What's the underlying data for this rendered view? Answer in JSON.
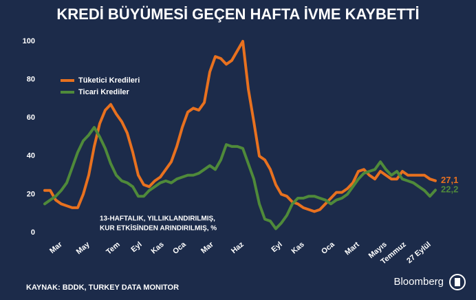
{
  "chart_data": {
    "type": "line",
    "title": "KREDİ BÜYÜMESİ GEÇEN HAFTA İVME KAYBETTİ",
    "annotation": [
      "13-HAFTALIK, YILLIKLANDIRILMIŞ,",
      "KUR ETKİSİNDEN ARINDIRILMIŞ, %"
    ],
    "source": "KAYNAK: BDDK, TURKEY DATA MONITOR",
    "brand": "Bloomberg",
    "x": [
      0,
      2,
      4,
      6,
      8,
      10,
      12,
      14,
      16,
      18,
      20,
      22,
      24,
      26,
      28,
      30,
      32,
      34,
      36,
      38,
      40,
      42,
      44,
      46,
      48,
      50,
      52,
      54,
      56,
      58,
      60,
      62,
      64,
      66,
      68,
      70,
      72,
      74,
      76,
      78,
      80,
      82,
      84,
      86,
      88,
      90,
      92,
      94,
      96,
      98,
      100,
      102,
      104,
      106,
      108,
      110,
      112,
      114,
      116,
      118,
      120,
      122,
      124,
      126,
      128,
      130,
      132,
      134,
      136,
      138,
      140,
      142
    ],
    "xlim": [
      0,
      142
    ],
    "xticks": [
      {
        "value": 6,
        "label": "Mar"
      },
      {
        "value": 16,
        "label": "May"
      },
      {
        "value": 27,
        "label": "Tem"
      },
      {
        "value": 35,
        "label": "Eyl"
      },
      {
        "value": 43,
        "label": "Kas"
      },
      {
        "value": 51,
        "label": "Oca"
      },
      {
        "value": 61,
        "label": "Mar"
      },
      {
        "value": 72,
        "label": "Haz"
      },
      {
        "value": 86,
        "label": "Eyl"
      },
      {
        "value": 94,
        "label": "Kas"
      },
      {
        "value": 105,
        "label": "Oca"
      },
      {
        "value": 114,
        "label": "Mart"
      },
      {
        "value": 124,
        "label": "Mayıs"
      },
      {
        "value": 131,
        "label": "Temmuz"
      },
      {
        "value": 140,
        "label": "27 Eylül"
      }
    ],
    "ylim": [
      0,
      100
    ],
    "yticks": [
      0,
      20,
      40,
      60,
      80,
      100
    ],
    "grid": false,
    "legend": "upper left",
    "series": [
      {
        "name": "Tüketici Kredileri",
        "color": "#e8711f",
        "values": [
          22,
          22,
          17,
          15,
          14,
          13,
          13,
          20,
          30,
          45,
          57,
          64,
          67,
          62,
          58,
          52,
          42,
          30,
          25,
          24,
          27,
          29,
          33,
          37,
          45,
          55,
          63,
          65,
          64,
          68,
          84,
          92,
          91,
          88,
          90,
          95,
          100,
          75,
          58,
          40,
          38,
          33,
          25,
          20,
          19,
          16,
          15,
          13,
          12,
          11,
          12,
          15,
          18,
          21,
          21,
          23,
          26,
          32,
          33,
          30,
          28,
          32,
          30,
          28,
          28,
          32,
          30,
          30,
          30,
          30,
          28,
          27.1
        ],
        "value_labels": [
          null,
          null,
          null,
          null,
          null,
          null,
          null,
          null,
          null,
          null,
          null,
          null,
          null,
          null,
          null,
          null,
          null,
          null,
          null,
          null,
          null,
          null,
          null,
          null,
          null,
          null,
          null,
          null,
          null,
          null,
          null,
          null,
          null,
          null,
          null,
          null,
          null,
          null,
          null,
          null,
          null,
          null,
          null,
          null,
          null,
          null,
          null,
          null,
          null,
          null,
          null,
          null,
          null,
          null,
          null,
          null,
          null,
          null,
          null,
          null,
          null,
          null,
          null,
          null,
          null,
          null,
          null,
          null,
          null,
          null,
          null,
          "27,1"
        ]
      },
      {
        "name": "Ticari Krediler",
        "color": "#4f8a3a",
        "values": [
          15,
          17,
          19,
          22,
          26,
          34,
          42,
          48,
          51,
          55,
          50,
          44,
          36,
          30,
          27,
          26,
          24,
          19,
          19,
          22,
          24,
          26,
          27,
          26,
          28,
          29,
          30,
          30,
          31,
          33,
          35,
          33,
          38,
          46,
          45,
          45,
          44,
          36,
          28,
          15,
          7,
          6,
          2,
          5,
          9,
          15,
          18,
          18,
          19,
          19,
          18,
          17,
          15,
          17,
          18,
          20,
          24,
          28,
          31,
          32,
          33,
          37,
          33,
          30,
          32,
          28,
          27,
          26,
          24,
          22,
          19,
          22.2
        ],
        "value_labels": [
          null,
          null,
          null,
          null,
          null,
          null,
          null,
          null,
          null,
          null,
          null,
          null,
          null,
          null,
          null,
          null,
          null,
          null,
          null,
          null,
          null,
          null,
          null,
          null,
          null,
          null,
          null,
          null,
          null,
          null,
          null,
          null,
          null,
          null,
          null,
          null,
          null,
          null,
          null,
          null,
          null,
          null,
          null,
          null,
          null,
          null,
          null,
          null,
          null,
          null,
          null,
          null,
          null,
          null,
          null,
          null,
          null,
          null,
          null,
          null,
          null,
          null,
          null,
          null,
          null,
          null,
          null,
          null,
          null,
          null,
          null,
          "22,2"
        ]
      }
    ]
  }
}
